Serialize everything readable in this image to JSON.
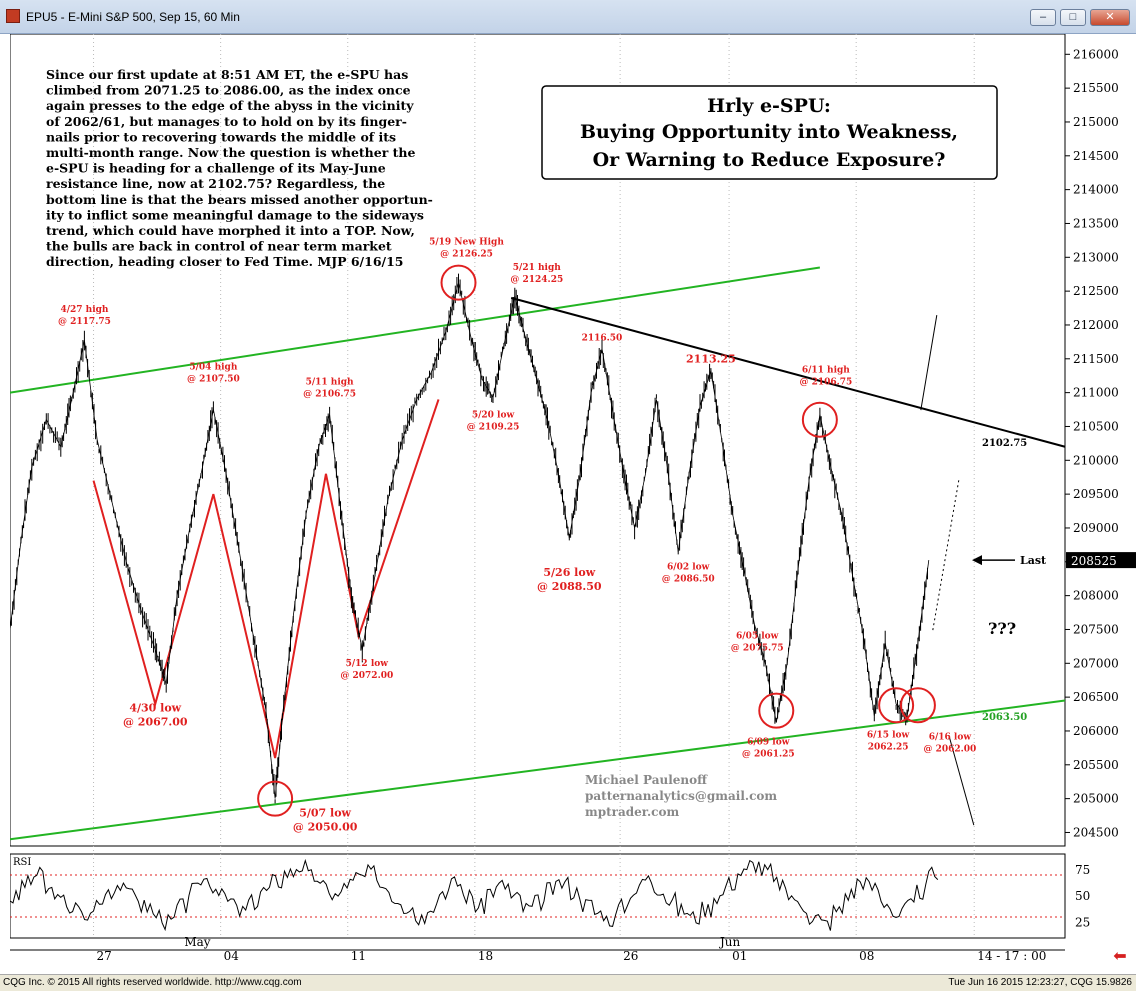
{
  "window": {
    "title": "EPU5 - E-Mini S&P 500, Sep 15, 60 Min",
    "minimize_label": "–",
    "maximize_label": "□",
    "close_label": "✕"
  },
  "status": {
    "copyright": "CQG Inc. © 2015 All rights reserved worldwide. http://www.cqg.com",
    "timestamp": "Tue Jun 16 2015 12:23:27, CQG 15.9826"
  },
  "chart_data": {
    "type": "line",
    "title": "Hrly e-SPU:",
    "subtitle_lines": [
      "Buying Opportunity into Weakness,",
      "Or Warning to Reduce Exposure?"
    ],
    "commentary_lines": [
      "Since our first update at 8:51 AM ET, the e-SPU has",
      "climbed from 2071.25 to 2086.00, as the index once",
      "again presses to the edge of the abyss in the vicinity",
      "of 2062/61, but manages to to hold on by its finger-",
      "nails prior to recovering towards the middle of its",
      "multi-month range. Now the question is whether the",
      "e-SPU is heading for a challenge of its May-June",
      "resistance line, now at 2102.75? Regardless, the",
      "bottom line is that the bears missed another opportun-",
      "ity to inflict some meaningful damage to the sideways",
      "trend, which could have morphed it into a TOP. Now,",
      "the bulls are back in control of near term market",
      "direction, heading closer to Fed Time. MJP 6/16/15"
    ],
    "author_lines": [
      "Michael Paulenoff",
      "patternanalytics@gmail.com",
      "mptrader.com"
    ],
    "ylim": [
      204300,
      216300
    ],
    "y_ticks": [
      204500,
      205000,
      205500,
      206000,
      206500,
      207000,
      207500,
      208000,
      208500,
      209000,
      209500,
      210000,
      210500,
      211000,
      211500,
      212000,
      212500,
      213000,
      213500,
      214000,
      214500,
      215000,
      215500,
      216000
    ],
    "last_value": "208525",
    "last_label": "Last",
    "question_label": "???",
    "x_ticks": [
      {
        "label": "27",
        "t": 1
      },
      {
        "label": "04",
        "t": 8
      },
      {
        "label": "11",
        "t": 15
      },
      {
        "label": "18",
        "t": 22
      },
      {
        "label": "26",
        "t": 30
      },
      {
        "label": "01",
        "t": 36
      },
      {
        "label": "08",
        "t": 43
      },
      {
        "label": "14 - 17 : 00",
        "t": 49.5
      }
    ],
    "month_labels": [
      {
        "label": "May",
        "t": 6
      },
      {
        "label": "Jun",
        "t": 35.5
      }
    ],
    "xlim": [
      -3.6,
      54.5
    ],
    "price_path": [
      [
        -3.6,
        207500
      ],
      [
        -3.0,
        208800
      ],
      [
        -2.4,
        209900
      ],
      [
        -1.6,
        210600
      ],
      [
        -0.8,
        210200
      ],
      [
        -0.2,
        210900
      ],
      [
        0.5,
        211775
      ],
      [
        1.2,
        210300
      ],
      [
        2.0,
        209400
      ],
      [
        2.8,
        208500
      ],
      [
        3.6,
        207800
      ],
      [
        4.4,
        207200
      ],
      [
        5.0,
        206700
      ],
      [
        5.6,
        208000
      ],
      [
        6.3,
        209000
      ],
      [
        7.0,
        209900
      ],
      [
        7.6,
        210750
      ],
      [
        8.3,
        209800
      ],
      [
        9.0,
        208700
      ],
      [
        9.8,
        207400
      ],
      [
        10.5,
        206300
      ],
      [
        11.0,
        205000
      ],
      [
        11.4,
        206200
      ],
      [
        12.0,
        207700
      ],
      [
        12.7,
        209200
      ],
      [
        13.4,
        210200
      ],
      [
        14.0,
        210675
      ],
      [
        14.6,
        209300
      ],
      [
        15.2,
        208000
      ],
      [
        15.8,
        207200
      ],
      [
        16.5,
        208300
      ],
      [
        17.2,
        209400
      ],
      [
        18.0,
        210300
      ],
      [
        18.8,
        210900
      ],
      [
        19.6,
        211300
      ],
      [
        20.4,
        211900
      ],
      [
        21.1,
        212625
      ],
      [
        21.8,
        211800
      ],
      [
        22.4,
        211200
      ],
      [
        23.0,
        210925
      ],
      [
        23.6,
        211700
      ],
      [
        24.2,
        212425
      ],
      [
        24.8,
        211800
      ],
      [
        25.4,
        211200
      ],
      [
        26.0,
        210600
      ],
      [
        26.6,
        209800
      ],
      [
        27.2,
        208850
      ],
      [
        27.8,
        209800
      ],
      [
        28.4,
        211000
      ],
      [
        29.0,
        211650
      ],
      [
        29.6,
        210700
      ],
      [
        30.2,
        209800
      ],
      [
        30.8,
        209000
      ],
      [
        31.4,
        209800
      ],
      [
        32.0,
        210900
      ],
      [
        32.6,
        209900
      ],
      [
        33.2,
        208650
      ],
      [
        33.8,
        209800
      ],
      [
        34.4,
        210800
      ],
      [
        35.0,
        211325
      ],
      [
        35.6,
        210300
      ],
      [
        36.2,
        209200
      ],
      [
        36.8,
        208400
      ],
      [
        37.4,
        207575
      ],
      [
        38.0,
        207000
      ],
      [
        38.6,
        206125
      ],
      [
        39.2,
        207000
      ],
      [
        39.8,
        208400
      ],
      [
        40.4,
        209700
      ],
      [
        41.0,
        210675
      ],
      [
        41.6,
        209900
      ],
      [
        42.2,
        209200
      ],
      [
        42.8,
        208300
      ],
      [
        43.4,
        207400
      ],
      [
        44.0,
        206225
      ],
      [
        44.6,
        207300
      ],
      [
        45.2,
        206400
      ],
      [
        45.8,
        206200
      ],
      [
        46.4,
        207300
      ],
      [
        47.0,
        208525
      ]
    ],
    "rsi": {
      "label": "RSI",
      "ylim": [
        10,
        90
      ],
      "ticks": [
        25,
        50,
        75
      ],
      "bands": [
        30,
        70
      ],
      "values": [
        48,
        62,
        70,
        55,
        45,
        38,
        30,
        42,
        55,
        63,
        50,
        40,
        32,
        25,
        40,
        55,
        66,
        58,
        45,
        35,
        44,
        55,
        64,
        72,
        78,
        68,
        58,
        50,
        62,
        68,
        72,
        60,
        48,
        40,
        30,
        42,
        55,
        62,
        50,
        40,
        55,
        60,
        48,
        38,
        44,
        56,
        62,
        54,
        42,
        34,
        28,
        40,
        55,
        66,
        58,
        46,
        36,
        30,
        38,
        50,
        62,
        72,
        80,
        74,
        62,
        50,
        40,
        30,
        24,
        36,
        52,
        64,
        58,
        44,
        32,
        40,
        54,
        70
      ]
    },
    "annotations_red": [
      {
        "t": 0.5,
        "v": 211775,
        "text": [
          "4/27 high",
          "@ 2117.75"
        ],
        "dx": 0,
        "dy": -28,
        "size": 9
      },
      {
        "t": 7.6,
        "v": 210750,
        "text": [
          "5/04 high",
          "@ 2107.50"
        ],
        "dx": 0,
        "dy": -40,
        "size": 9
      },
      {
        "t": 14.0,
        "v": 210675,
        "text": [
          "5/11 high",
          "@ 2106.75"
        ],
        "dx": 0,
        "dy": -30,
        "size": 9
      },
      {
        "t": 21.1,
        "v": 212625,
        "text": [
          "5/19 New High",
          "@ 2126.25"
        ],
        "dx": 8,
        "dy": -38,
        "size": 9
      },
      {
        "t": 24.2,
        "v": 212425,
        "text": [
          "5/21 high",
          "@ 2124.25"
        ],
        "dx": 22,
        "dy": -26,
        "size": 9
      },
      {
        "t": 23.0,
        "v": 210925,
        "text": [
          "5/20 low",
          "@ 2109.25"
        ],
        "dx": 0,
        "dy": 20,
        "size": 9
      },
      {
        "t": 4.4,
        "v": 206700,
        "text": [
          "4/30 low",
          "@ 2067.00"
        ],
        "dx": 0,
        "dy": 28,
        "size": 11
      },
      {
        "t": 11.0,
        "v": 205000,
        "text": [
          "5/07 low",
          "@ 2050.00"
        ],
        "dx": 50,
        "dy": 18,
        "size": 11
      },
      {
        "t": 15.5,
        "v": 207200,
        "text": [
          "5/12 low",
          "@ 2072.00"
        ],
        "dx": 10,
        "dy": 16,
        "size": 9
      },
      {
        "t": 27.2,
        "v": 208850,
        "text": [
          "5/26 low",
          "@ 2088.50"
        ],
        "dx": 0,
        "dy": 38,
        "size": 11
      },
      {
        "t": 29.0,
        "v": 211650,
        "text": [
          "2116.50"
        ],
        "dx": 0,
        "dy": -8,
        "size": 9
      },
      {
        "t": 35.0,
        "v": 211325,
        "text": [
          "2113.25"
        ],
        "dx": 0,
        "dy": -8,
        "size": 11
      },
      {
        "t": 33.2,
        "v": 208650,
        "text": [
          "6/02 low",
          "@ 2086.50"
        ],
        "dx": 10,
        "dy": 18,
        "size": 9
      },
      {
        "t": 37.0,
        "v": 207575,
        "text": [
          "6/05 low",
          "@ 2075.75"
        ],
        "dx": 10,
        "dy": 14,
        "size": 9
      },
      {
        "t": 38.6,
        "v": 206125,
        "text": [
          "6/09 low",
          "@ 2061.25"
        ],
        "dx": -8,
        "dy": 22,
        "size": 9
      },
      {
        "t": 41.0,
        "v": 210675,
        "text": [
          "6/11 high",
          "@ 2106.75"
        ],
        "dx": 6,
        "dy": -42,
        "size": 9
      },
      {
        "t": 45.2,
        "v": 206225,
        "text": [
          "6/15 low",
          "2062.25"
        ],
        "dx": -8,
        "dy": 22,
        "size": 9
      },
      {
        "t": 46.4,
        "v": 206200,
        "text": [
          "6/16 low",
          "@ 2062.00"
        ],
        "dx": 32,
        "dy": 22,
        "size": 9
      }
    ],
    "label_black_2102": "2102.75",
    "label_green_2063": "2063.50",
    "circles": [
      {
        "t": 11.0,
        "v": 205000
      },
      {
        "t": 21.1,
        "v": 212625
      },
      {
        "t": 38.6,
        "v": 206300
      },
      {
        "t": 41.0,
        "v": 210600
      },
      {
        "t": 45.2,
        "v": 206380
      },
      {
        "t": 46.4,
        "v": 206380
      }
    ],
    "channel_top": [
      [
        -3.6,
        211000
      ],
      [
        41.0,
        212850
      ]
    ],
    "channel_bottom": [
      [
        -3.6,
        204400
      ],
      [
        54.5,
        206450
      ]
    ],
    "resistance": [
      [
        24.0,
        212400
      ],
      [
        54.5,
        210200
      ]
    ],
    "zigzag": [
      [
        1.0,
        209700
      ],
      [
        4.4,
        206400
      ],
      [
        7.6,
        209500
      ],
      [
        11.0,
        205600
      ],
      [
        13.8,
        209800
      ],
      [
        15.6,
        207400
      ],
      [
        20.0,
        210900
      ]
    ]
  }
}
